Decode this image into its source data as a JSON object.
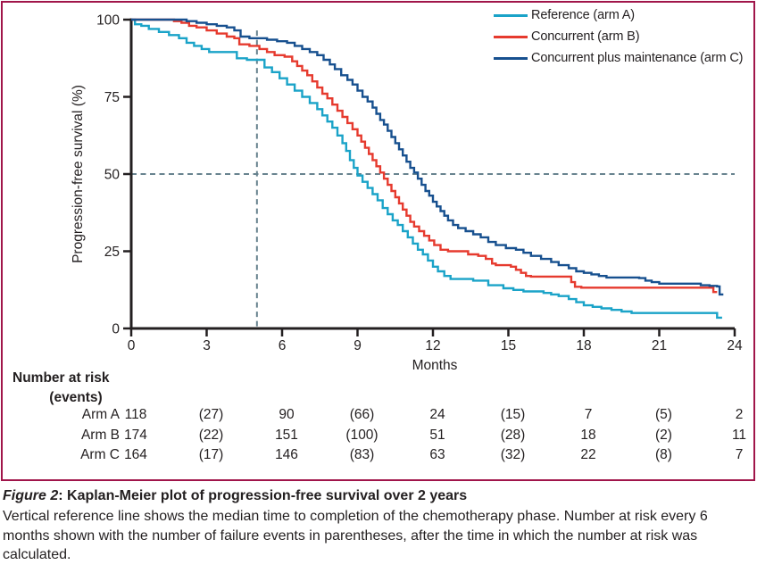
{
  "figure": {
    "caption_figure_label": "Figure 2",
    "caption_title_rest": ": Kaplan-Meier plot of progression-free survival over 2 years",
    "caption_body": "Vertical reference line shows the median time to completion of the chemotherapy phase. Number at risk every 6 months shown with the number of failure events in parentheses, after the time in which the number at risk was calculated."
  },
  "chart_data": {
    "type": "line",
    "subtype": "kaplan-meier-step",
    "title": "",
    "x_axis_label": "Months",
    "y_axis_label": "Progression-free survival (%)",
    "xlim": [
      0,
      24
    ],
    "ylim": [
      0,
      100
    ],
    "x_ticks": [
      0,
      3,
      6,
      9,
      12,
      15,
      18,
      21,
      24
    ],
    "y_ticks": [
      0,
      25,
      50,
      75,
      100
    ],
    "grid": false,
    "legend_position": "top-right",
    "reference_lines": {
      "vertical_x_months": 5,
      "horizontal_y_percent": 50,
      "style": "dashed",
      "color": "#68838f"
    },
    "median_pfs_months": {
      "arm_a": 8.7,
      "arm_b": 9.9,
      "arm_c": 11.0
    },
    "series": [
      {
        "name": "Reference (arm A)",
        "id": "arm-a",
        "color": "#1aa3c8",
        "steps": [
          [
            0,
            100
          ],
          [
            0.15,
            98.5
          ],
          [
            0.4,
            98
          ],
          [
            0.7,
            97
          ],
          [
            1.1,
            96
          ],
          [
            1.5,
            95
          ],
          [
            1.9,
            94
          ],
          [
            2.2,
            92.5
          ],
          [
            2.5,
            91.5
          ],
          [
            2.8,
            90.5
          ],
          [
            3.1,
            89.5
          ],
          [
            4.2,
            87.5
          ],
          [
            4.6,
            87
          ],
          [
            5.3,
            84.5
          ],
          [
            5.6,
            83
          ],
          [
            5.9,
            81
          ],
          [
            6.2,
            79
          ],
          [
            6.5,
            77
          ],
          [
            6.8,
            75
          ],
          [
            7.1,
            73
          ],
          [
            7.4,
            71
          ],
          [
            7.6,
            69
          ],
          [
            7.8,
            67
          ],
          [
            8.0,
            65
          ],
          [
            8.2,
            62.5
          ],
          [
            8.4,
            60
          ],
          [
            8.55,
            57.5
          ],
          [
            8.7,
            54.5
          ],
          [
            8.85,
            52
          ],
          [
            9.0,
            49.5
          ],
          [
            9.2,
            47.5
          ],
          [
            9.4,
            45.5
          ],
          [
            9.6,
            43.5
          ],
          [
            9.8,
            41.5
          ],
          [
            10.0,
            39
          ],
          [
            10.2,
            37
          ],
          [
            10.4,
            35
          ],
          [
            10.6,
            33.5
          ],
          [
            10.8,
            31.5
          ],
          [
            11.0,
            29.5
          ],
          [
            11.2,
            27.5
          ],
          [
            11.4,
            25.5
          ],
          [
            11.6,
            24
          ],
          [
            11.8,
            22
          ],
          [
            12.0,
            20
          ],
          [
            12.2,
            18.5
          ],
          [
            12.45,
            17
          ],
          [
            12.7,
            16
          ],
          [
            13.6,
            15.5
          ],
          [
            14.2,
            14
          ],
          [
            14.8,
            13
          ],
          [
            15.2,
            12.5
          ],
          [
            15.6,
            12
          ],
          [
            16.4,
            11.5
          ],
          [
            16.7,
            11
          ],
          [
            17.0,
            10.5
          ],
          [
            17.4,
            9.5
          ],
          [
            17.7,
            8.5
          ],
          [
            18.0,
            7.5
          ],
          [
            18.35,
            7
          ],
          [
            18.7,
            6.5
          ],
          [
            19.1,
            6
          ],
          [
            19.5,
            5.5
          ],
          [
            19.9,
            5
          ],
          [
            23.2,
            5
          ],
          [
            23.3,
            3.5
          ],
          [
            23.5,
            3.5
          ]
        ]
      },
      {
        "name": "Concurrent (arm B)",
        "id": "arm-b",
        "color": "#e63a2e",
        "steps": [
          [
            0,
            100
          ],
          [
            1.5,
            100
          ],
          [
            1.7,
            99.5
          ],
          [
            2.0,
            99
          ],
          [
            2.3,
            98
          ],
          [
            2.6,
            97.5
          ],
          [
            3.0,
            96.5
          ],
          [
            3.4,
            95.5
          ],
          [
            3.8,
            94.5
          ],
          [
            4.1,
            94
          ],
          [
            4.3,
            92
          ],
          [
            4.7,
            91.5
          ],
          [
            5.1,
            90.5
          ],
          [
            5.4,
            89.5
          ],
          [
            5.7,
            88.5
          ],
          [
            6.1,
            88
          ],
          [
            6.4,
            86.5
          ],
          [
            6.6,
            85
          ],
          [
            6.8,
            83.5
          ],
          [
            7.0,
            82
          ],
          [
            7.2,
            80
          ],
          [
            7.4,
            78
          ],
          [
            7.6,
            76
          ],
          [
            7.8,
            74.5
          ],
          [
            8.0,
            72.5
          ],
          [
            8.2,
            70.5
          ],
          [
            8.4,
            68.5
          ],
          [
            8.6,
            66.5
          ],
          [
            8.8,
            64.5
          ],
          [
            9.0,
            62.5
          ],
          [
            9.15,
            60.5
          ],
          [
            9.3,
            58.5
          ],
          [
            9.45,
            56.5
          ],
          [
            9.6,
            54.5
          ],
          [
            9.75,
            52.5
          ],
          [
            9.9,
            50.5
          ],
          [
            10.05,
            48.5
          ],
          [
            10.2,
            46.5
          ],
          [
            10.35,
            44.5
          ],
          [
            10.5,
            42.5
          ],
          [
            10.65,
            40.5
          ],
          [
            10.8,
            38.5
          ],
          [
            10.95,
            36.5
          ],
          [
            11.1,
            34.5
          ],
          [
            11.25,
            33
          ],
          [
            11.45,
            31.5
          ],
          [
            11.65,
            30
          ],
          [
            11.85,
            28.5
          ],
          [
            12.05,
            27
          ],
          [
            12.3,
            25.5
          ],
          [
            12.6,
            25
          ],
          [
            13.4,
            24
          ],
          [
            13.8,
            23.5
          ],
          [
            14.1,
            22.5
          ],
          [
            14.35,
            21
          ],
          [
            14.5,
            20.5
          ],
          [
            15.1,
            20
          ],
          [
            15.3,
            19
          ],
          [
            15.5,
            18
          ],
          [
            15.7,
            17
          ],
          [
            15.9,
            16.8
          ],
          [
            17.35,
            16.8
          ],
          [
            17.5,
            15
          ],
          [
            17.65,
            13.5
          ],
          [
            17.9,
            13.2
          ],
          [
            23.0,
            13.2
          ],
          [
            23.15,
            11.8
          ],
          [
            23.3,
            11.8
          ]
        ]
      },
      {
        "name": "Concurrent plus maintenance (arm C)",
        "id": "arm-c",
        "color": "#17508f",
        "steps": [
          [
            0,
            100
          ],
          [
            2.0,
            100
          ],
          [
            2.2,
            99.5
          ],
          [
            2.6,
            99
          ],
          [
            3.0,
            98.5
          ],
          [
            3.4,
            98
          ],
          [
            3.8,
            97.5
          ],
          [
            4.1,
            96.5
          ],
          [
            4.35,
            94.5
          ],
          [
            4.7,
            94
          ],
          [
            5.4,
            93.5
          ],
          [
            5.8,
            93
          ],
          [
            6.2,
            92.5
          ],
          [
            6.5,
            91.5
          ],
          [
            6.8,
            90.5
          ],
          [
            7.1,
            89.5
          ],
          [
            7.4,
            88.5
          ],
          [
            7.65,
            87
          ],
          [
            7.9,
            85.5
          ],
          [
            8.1,
            84
          ],
          [
            8.35,
            82
          ],
          [
            8.6,
            80.5
          ],
          [
            8.8,
            79
          ],
          [
            9.0,
            77
          ],
          [
            9.2,
            75
          ],
          [
            9.4,
            73.5
          ],
          [
            9.6,
            71.5
          ],
          [
            9.75,
            69.5
          ],
          [
            9.9,
            67.5
          ],
          [
            10.05,
            66
          ],
          [
            10.2,
            64
          ],
          [
            10.35,
            62
          ],
          [
            10.5,
            60
          ],
          [
            10.65,
            58
          ],
          [
            10.8,
            56
          ],
          [
            10.95,
            54
          ],
          [
            11.1,
            52
          ],
          [
            11.25,
            50.5
          ],
          [
            11.4,
            48.5
          ],
          [
            11.55,
            46.5
          ],
          [
            11.7,
            44.5
          ],
          [
            11.85,
            43
          ],
          [
            12.0,
            41
          ],
          [
            12.15,
            39.5
          ],
          [
            12.3,
            38
          ],
          [
            12.45,
            36.5
          ],
          [
            12.6,
            35
          ],
          [
            12.8,
            33.5
          ],
          [
            13.0,
            32.5
          ],
          [
            13.3,
            31.5
          ],
          [
            13.6,
            30.5
          ],
          [
            13.9,
            29.5
          ],
          [
            14.2,
            28
          ],
          [
            14.5,
            27
          ],
          [
            14.9,
            26
          ],
          [
            15.3,
            25.5
          ],
          [
            15.6,
            24.5
          ],
          [
            15.9,
            23.5
          ],
          [
            16.3,
            22.5
          ],
          [
            16.7,
            21.5
          ],
          [
            17.0,
            20.5
          ],
          [
            17.4,
            19.5
          ],
          [
            17.7,
            18.5
          ],
          [
            18.0,
            18
          ],
          [
            18.3,
            17.5
          ],
          [
            18.6,
            17
          ],
          [
            18.9,
            16.5
          ],
          [
            20.2,
            16.3
          ],
          [
            20.45,
            15.5
          ],
          [
            20.7,
            15
          ],
          [
            21.0,
            14.5
          ],
          [
            22.4,
            14.5
          ],
          [
            22.65,
            14
          ],
          [
            23.0,
            13.8
          ],
          [
            23.3,
            13.6
          ],
          [
            23.4,
            11
          ],
          [
            23.55,
            11
          ]
        ]
      }
    ]
  },
  "risk_table": {
    "header_line1": "Number at risk",
    "header_line2": "(events)",
    "columns_months": [
      0,
      3,
      6,
      9,
      12,
      15,
      18,
      21,
      24
    ],
    "rows": [
      {
        "label": "Arm A",
        "values": [
          "118",
          "(27)",
          "90",
          "(66)",
          "24",
          "(15)",
          "7",
          "(5)",
          "2"
        ]
      },
      {
        "label": "Arm B",
        "values": [
          "174",
          "(22)",
          "151",
          "(100)",
          "51",
          "(28)",
          "18",
          "(2)",
          "11"
        ]
      },
      {
        "label": "Arm C",
        "values": [
          "164",
          "(17)",
          "146",
          "(83)",
          "63",
          "(32)",
          "22",
          "(8)",
          "7"
        ]
      }
    ]
  },
  "colors": {
    "border": "#a0154a",
    "axis": "#231f20",
    "text": "#231f20",
    "arm_a": "#1aa3c8",
    "arm_b": "#e63a2e",
    "arm_c": "#17508f",
    "reference_dash": "#68838f"
  }
}
